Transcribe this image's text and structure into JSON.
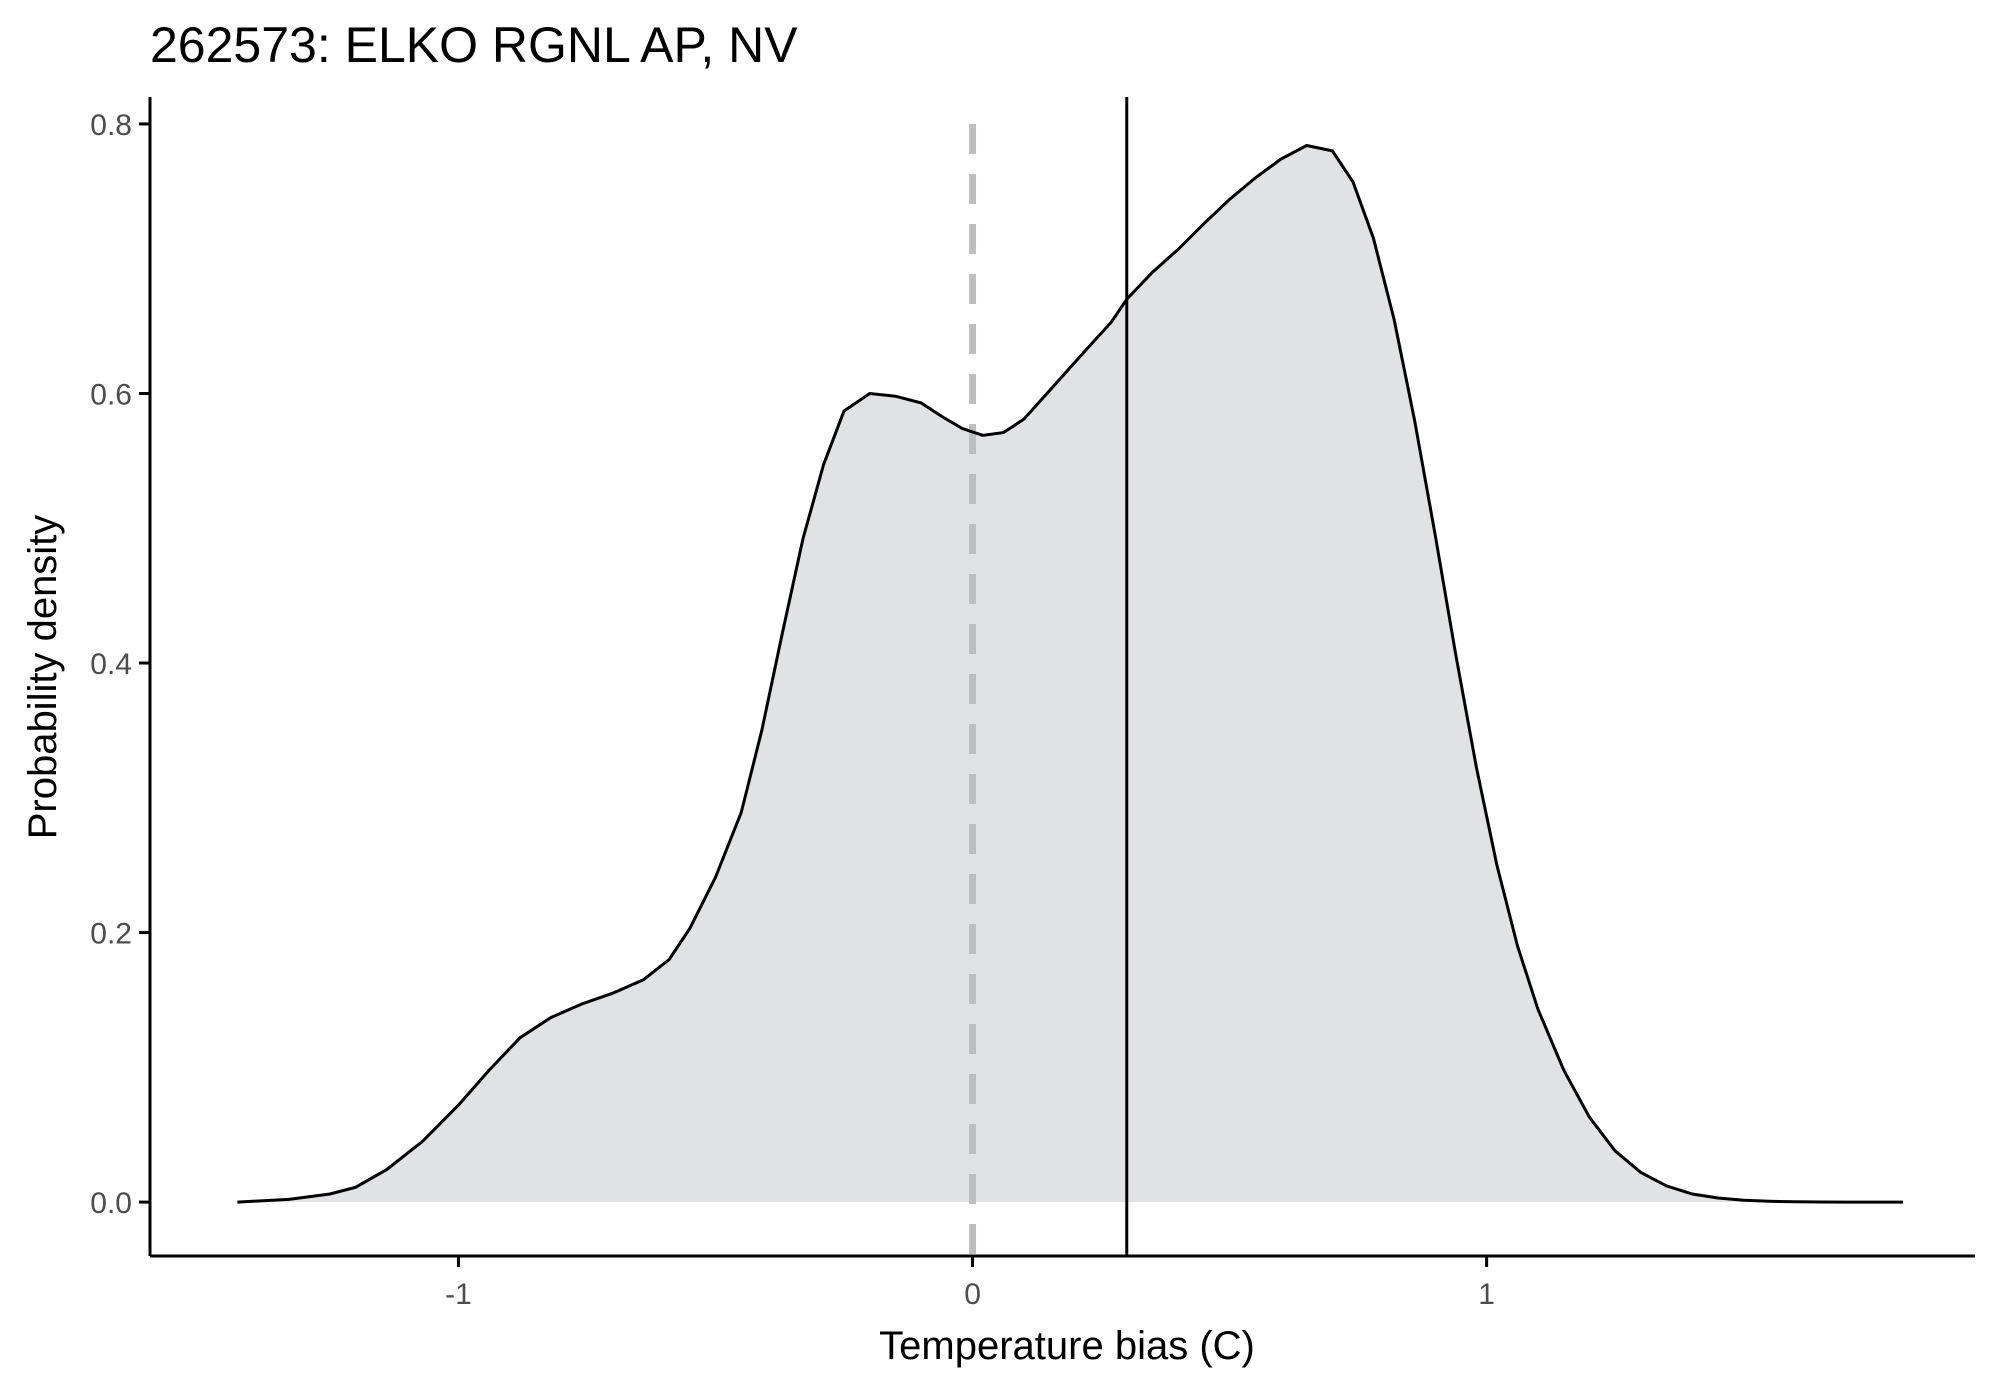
{
  "chart_data": {
    "type": "area",
    "title": "262573: ELKO RGNL AP, NV",
    "xlabel": "Temperature bias (C)",
    "ylabel": "Probability density",
    "xlim": [
      -1.6,
      1.95
    ],
    "ylim": [
      -0.04,
      0.82
    ],
    "x_ticks": [
      -1,
      0,
      1
    ],
    "x_tick_labels": [
      "-1",
      "0",
      "1"
    ],
    "y_ticks": [
      0.0,
      0.2,
      0.4,
      0.6,
      0.8
    ],
    "y_tick_labels": [
      "0.0",
      "0.2",
      "0.4",
      "0.6",
      "0.8"
    ],
    "grid": false,
    "reference_lines": {
      "zero_line_x": 0,
      "mean_line_x": 0.3
    },
    "colors": {
      "fill": "#e0e2e4",
      "curve": "#000000",
      "zero_line": "#bebebe",
      "axis": "#000000",
      "tick_label": "#4d4d4d"
    },
    "series": [
      {
        "x": [
          -1.43,
          -1.33,
          -1.25,
          -1.2,
          -1.14,
          -1.07,
          -1.0,
          -0.94,
          -0.88,
          -0.82,
          -0.76,
          -0.7,
          -0.64,
          -0.59,
          -0.55,
          -0.5,
          -0.45,
          -0.41,
          -0.37,
          -0.33,
          -0.29,
          -0.25,
          -0.2,
          -0.15,
          -0.1,
          -0.06,
          -0.02,
          0.02,
          0.06,
          0.1,
          0.14,
          0.18,
          0.22,
          0.27,
          0.3,
          0.35,
          0.4,
          0.45,
          0.5,
          0.55,
          0.6,
          0.65,
          0.7,
          0.74,
          0.78,
          0.82,
          0.86,
          0.9,
          0.94,
          0.98,
          1.02,
          1.06,
          1.1,
          1.15,
          1.2,
          1.25,
          1.3,
          1.35,
          1.4,
          1.45,
          1.5,
          1.55,
          1.6,
          1.65,
          1.7,
          1.75,
          1.81
        ],
        "y": [
          0.0,
          0.002,
          0.006,
          0.011,
          0.024,
          0.045,
          0.072,
          0.098,
          0.122,
          0.137,
          0.147,
          0.155,
          0.165,
          0.18,
          0.203,
          0.241,
          0.289,
          0.35,
          0.422,
          0.492,
          0.547,
          0.587,
          0.6,
          0.598,
          0.593,
          0.583,
          0.574,
          0.569,
          0.571,
          0.581,
          0.598,
          0.615,
          0.632,
          0.653,
          0.67,
          0.69,
          0.707,
          0.726,
          0.744,
          0.76,
          0.774,
          0.784,
          0.78,
          0.757,
          0.715,
          0.655,
          0.58,
          0.495,
          0.406,
          0.323,
          0.25,
          0.19,
          0.143,
          0.098,
          0.063,
          0.038,
          0.022,
          0.012,
          0.006,
          0.003,
          0.0013,
          0.0006,
          0.0002,
          0.0001,
          0.0,
          0.0,
          0.0
        ]
      }
    ]
  }
}
